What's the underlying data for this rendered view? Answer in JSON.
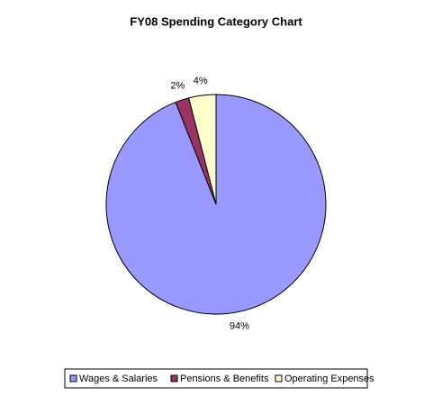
{
  "chart_data": {
    "type": "pie",
    "title": "FY08 Spending Category Chart",
    "categories": [
      "Wages & Salaries",
      "Pensions & Benefits",
      "Operating Expenses"
    ],
    "values": [
      94,
      2,
      4
    ],
    "value_labels": [
      "94%",
      "2%",
      "4%"
    ],
    "colors": [
      "#9999ff",
      "#993366",
      "#ffffcc"
    ]
  }
}
